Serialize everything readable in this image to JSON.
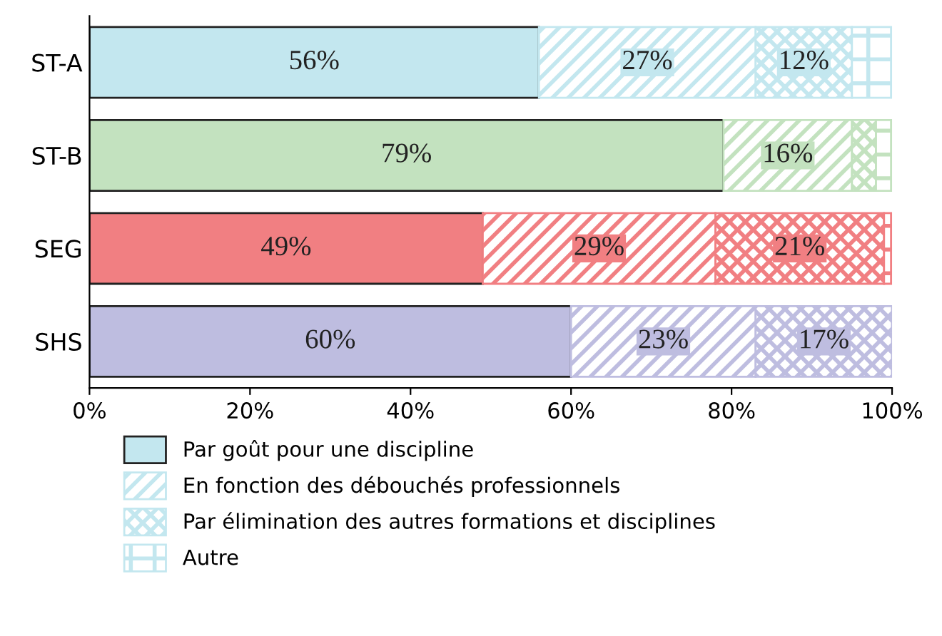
{
  "chart_data": {
    "type": "bar",
    "orientation": "horizontal",
    "stacked": true,
    "legend": "bottom left",
    "grid": false,
    "categories": [
      "ST-A",
      "ST-B",
      "SEG",
      "SHS"
    ],
    "xlim": [
      0,
      100
    ],
    "xticks": [
      {
        "value": 0,
        "label": "0%"
      },
      {
        "value": 20,
        "label": "20%"
      },
      {
        "value": 40,
        "label": "40%"
      },
      {
        "value": 60,
        "label": "60%"
      },
      {
        "value": 80,
        "label": "80%"
      },
      {
        "value": 100,
        "label": "100%"
      }
    ],
    "series": [
      {
        "name": "Par goût pour une discipline",
        "colors": [
          "#c3e7ef",
          "#c3e2bf",
          "#f17f82",
          "#bebde0"
        ],
        "values": [
          56,
          79,
          49,
          60
        ],
        "value_labels": [
          "56%",
          "79%",
          "49%",
          "60%"
        ]
      },
      {
        "name": "En fonction des débouchés professionnels",
        "colors": [
          "#c3e7ef",
          "#c3e2bf",
          "#f17f82",
          "#bebde0"
        ],
        "values": [
          27,
          16,
          29,
          23
        ],
        "value_labels": [
          "27%",
          "16%",
          "29%",
          "23%"
        ]
      },
      {
        "name": "Par élimination des autres formations et disciplines",
        "colors": [
          "#c3e7ef",
          "#c3e2bf",
          "#f17f82",
          "#bebde0"
        ],
        "values": [
          12,
          3,
          21,
          17
        ],
        "value_labels": [
          "12%",
          null,
          "21%",
          "17%"
        ]
      },
      {
        "name": "Autre",
        "colors": [
          "#c3e7ef",
          "#c3e2bf",
          "#f17f82",
          "#bebde0"
        ],
        "values": [
          5,
          2,
          1,
          0
        ],
        "value_labels": [
          null,
          null,
          null,
          null
        ]
      }
    ]
  }
}
